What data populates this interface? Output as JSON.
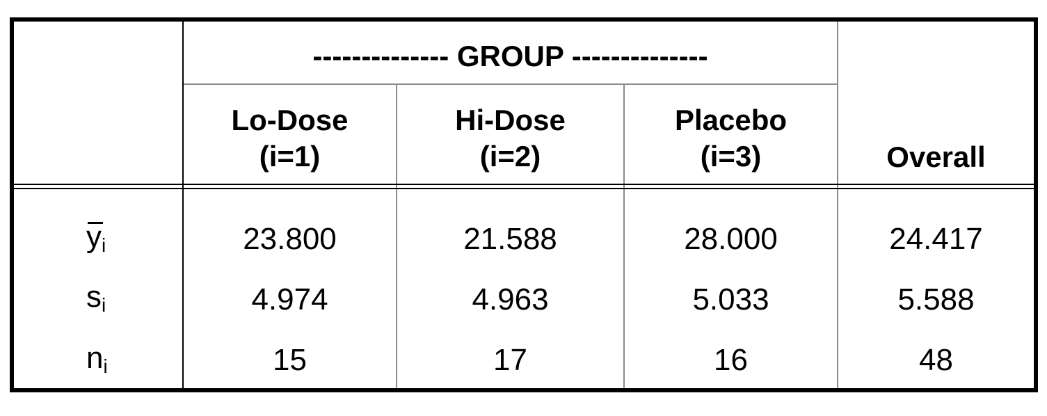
{
  "table": {
    "group_header": "-------------- GROUP --------------",
    "columns": [
      {
        "name": "Lo-Dose",
        "index": "(i=1)"
      },
      {
        "name": "Hi-Dose",
        "index": "(i=2)"
      },
      {
        "name": "Placebo",
        "index": "(i=3)"
      }
    ],
    "overall_header": "Overall",
    "rows": [
      {
        "label": "y",
        "sub": "i",
        "overbar": true,
        "values": [
          "23.800",
          "21.588",
          "28.000",
          "24.417"
        ]
      },
      {
        "label": "s",
        "sub": "i",
        "overbar": false,
        "values": [
          "4.974",
          "4.963",
          "5.033",
          "5.588"
        ]
      },
      {
        "label": "n",
        "sub": "i",
        "overbar": false,
        "values": [
          "15",
          "17",
          "16",
          "48"
        ]
      }
    ]
  }
}
